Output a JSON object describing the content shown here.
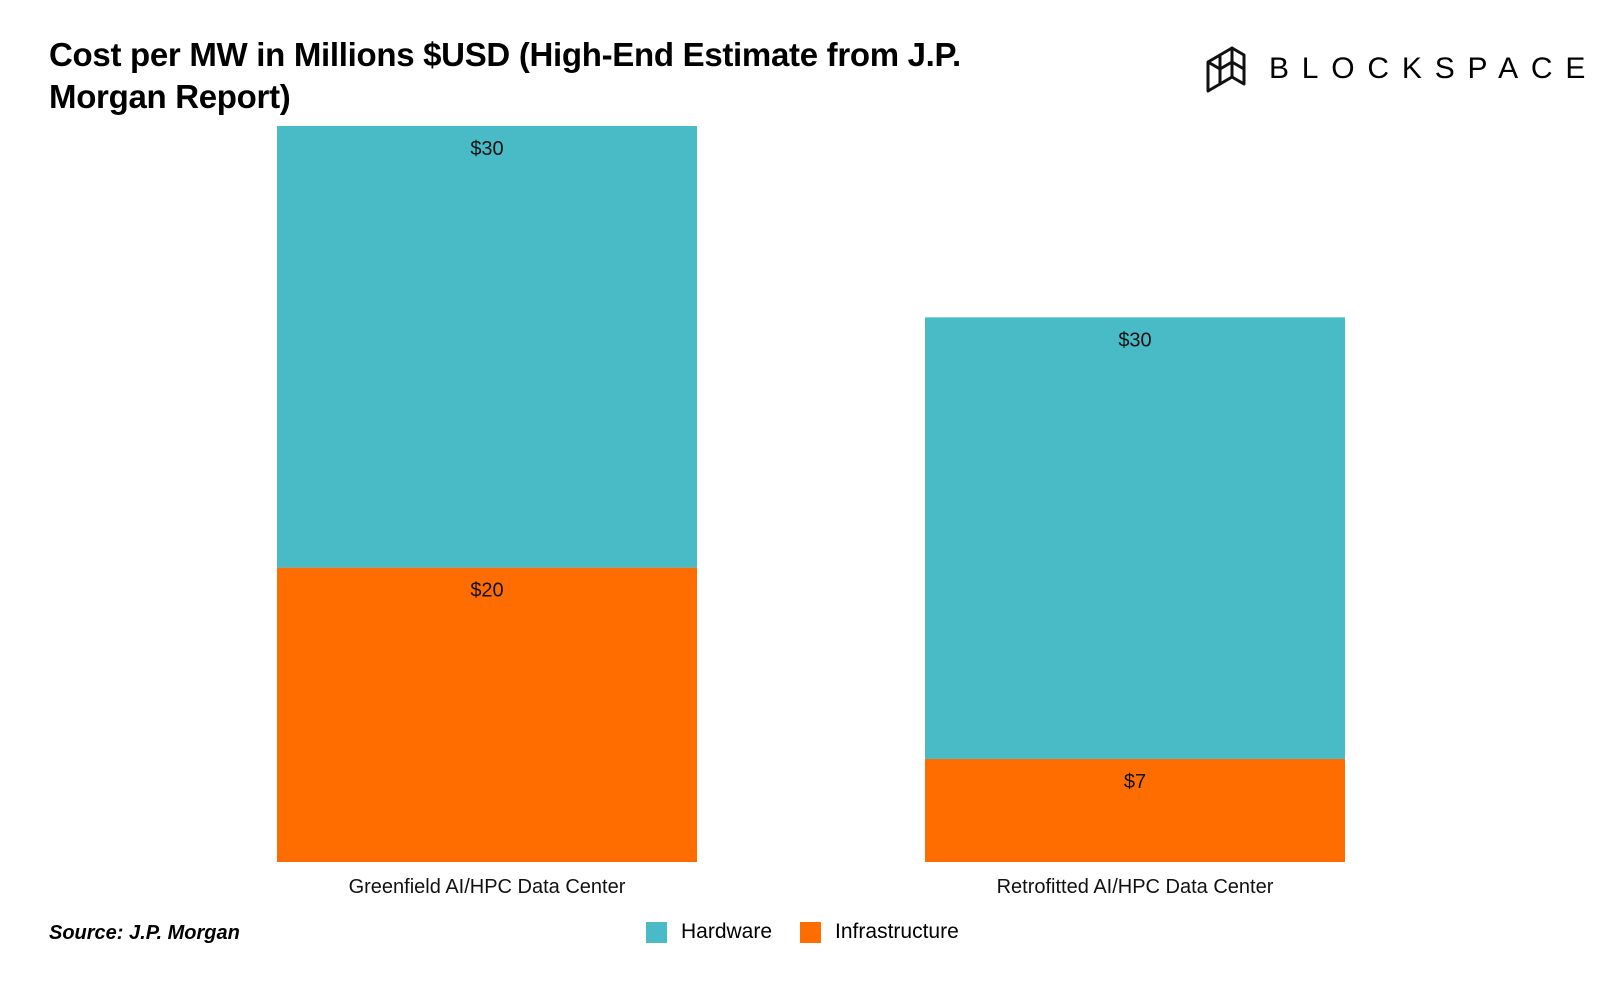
{
  "chart_title": "Cost per MW in Millions $USD (High-End Estimate from J.P. Morgan Report)",
  "logo": {
    "text": "BLOCKSPACE",
    "icon": "blockspace-logo-icon"
  },
  "source": "Source: J.P. Morgan",
  "colors": {
    "hardware": "#48bbc6",
    "infrastructure": "#ff6d00"
  },
  "chart_data": {
    "type": "bar",
    "stacked": true,
    "categories": [
      "Greenfield AI/HPC Data Center",
      "Retrofitted AI/HPC Data Center"
    ],
    "series": [
      {
        "name": "Infrastructure",
        "values": [
          20,
          7
        ],
        "labels": [
          "$20",
          "$7"
        ]
      },
      {
        "name": "Hardware",
        "values": [
          30,
          30
        ],
        "labels": [
          "$30",
          "$30"
        ]
      }
    ],
    "ylim": [
      0,
      50
    ],
    "grid": false,
    "legend": "bottom-center"
  }
}
